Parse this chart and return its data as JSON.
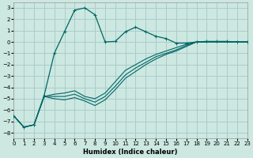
{
  "xlabel": "Humidex (Indice chaleur)",
  "background_color": "#cce8e0",
  "grid_color": "#aacccc",
  "line_color": "#006666",
  "xlim": [
    0,
    23
  ],
  "ylim": [
    -8.5,
    3.5
  ],
  "xticks": [
    0,
    1,
    2,
    3,
    4,
    5,
    6,
    7,
    8,
    9,
    10,
    11,
    12,
    13,
    14,
    15,
    16,
    17,
    18,
    19,
    20,
    21,
    22,
    23
  ],
  "yticks": [
    -8,
    -7,
    -6,
    -5,
    -4,
    -3,
    -2,
    -1,
    0,
    1,
    2,
    3
  ],
  "curve1_x": [
    0,
    1,
    2,
    3,
    4,
    5,
    6,
    7,
    8,
    9,
    10,
    11,
    12,
    13,
    14,
    15,
    16,
    17,
    18,
    19,
    20,
    21,
    22,
    23
  ],
  "curve1_y": [
    -6.5,
    -7.5,
    -7.3,
    -4.7,
    -1.0,
    0.9,
    2.8,
    3.0,
    2.4,
    0.0,
    0.05,
    0.9,
    1.3,
    0.9,
    0.5,
    0.3,
    -0.1,
    -0.1,
    0.0,
    0.05,
    0.05,
    0.05,
    0.0,
    0.0
  ],
  "curve2_x": [
    0,
    1,
    2,
    3,
    4,
    5,
    6,
    7,
    8,
    9,
    10,
    11,
    12,
    13,
    14,
    15,
    16,
    17,
    18,
    19,
    20,
    21,
    22,
    23
  ],
  "curve2_y": [
    -6.5,
    -7.5,
    -7.3,
    -4.8,
    -4.6,
    -4.5,
    -4.3,
    -4.8,
    -5.0,
    -4.5,
    -3.5,
    -2.5,
    -2.0,
    -1.5,
    -1.1,
    -0.8,
    -0.5,
    -0.2,
    0.0,
    0.0,
    0.0,
    0.0,
    0.0,
    0.0
  ],
  "curve3_x": [
    0,
    1,
    2,
    3,
    4,
    5,
    6,
    7,
    8,
    9,
    10,
    11,
    12,
    13,
    14,
    15,
    16,
    17,
    18,
    19,
    20,
    21,
    22,
    23
  ],
  "curve3_y": [
    -6.5,
    -7.5,
    -7.3,
    -4.8,
    -4.8,
    -4.8,
    -4.6,
    -5.0,
    -5.3,
    -4.8,
    -3.9,
    -2.9,
    -2.3,
    -1.8,
    -1.3,
    -1.0,
    -0.7,
    -0.3,
    0.0,
    0.0,
    0.0,
    0.0,
    0.0,
    0.0
  ],
  "curve4_x": [
    0,
    1,
    2,
    3,
    4,
    5,
    6,
    7,
    8,
    9,
    10,
    11,
    12,
    13,
    14,
    15,
    16,
    17,
    18,
    19,
    20,
    21,
    22,
    23
  ],
  "curve4_y": [
    -6.5,
    -7.5,
    -7.3,
    -4.8,
    -5.0,
    -5.1,
    -4.9,
    -5.2,
    -5.6,
    -5.1,
    -4.2,
    -3.2,
    -2.6,
    -2.0,
    -1.5,
    -1.1,
    -0.8,
    -0.4,
    0.0,
    0.0,
    0.0,
    0.0,
    0.0,
    0.0
  ],
  "xlabel_fontsize": 6,
  "tick_fontsize": 5
}
